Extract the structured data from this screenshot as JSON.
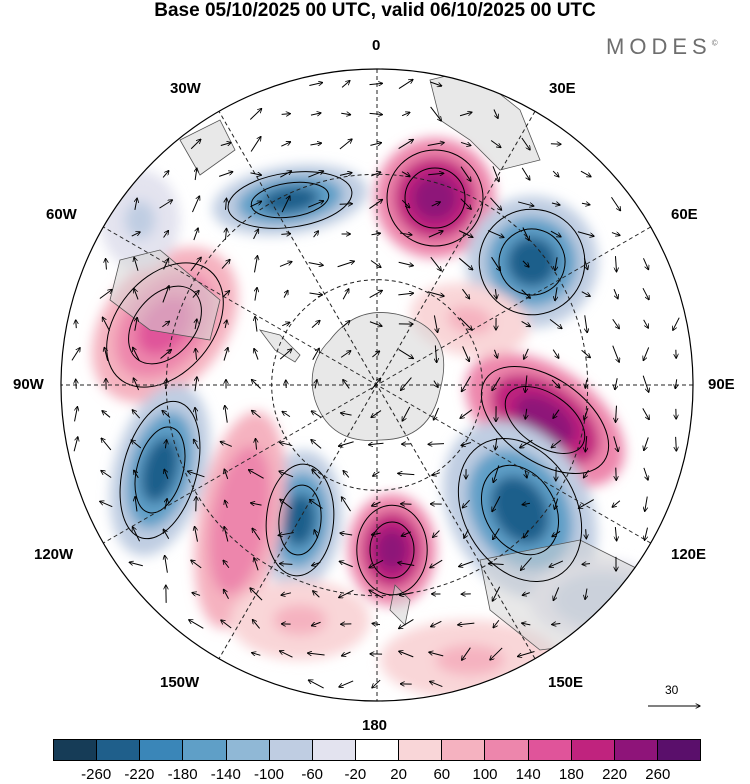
{
  "title": "Base 05/10/2025 00 UTC, valid 06/10/2025 00 UTC",
  "brand": {
    "name": "MODES",
    "mark": "©"
  },
  "longitudes": {
    "top": "0",
    "bottom": "180",
    "left": "90W",
    "right": "90E",
    "w30": "30W",
    "e30": "30E",
    "w60": "60W",
    "e60": "60E",
    "w120": "120W",
    "e120": "120E",
    "w150": "150W",
    "e150": "150E"
  },
  "reference_vector": {
    "label": "30",
    "icon": "arrow-right-icon"
  },
  "colorbar": {
    "colors": [
      "#163c57",
      "#1f5f8b",
      "#3a86b8",
      "#5f9fc7",
      "#90b8d6",
      "#bfcde2",
      "#e3e3ef",
      "#ffffff",
      "#f9d6d8",
      "#f5b2c0",
      "#ed86ac",
      "#e0549a",
      "#c0237e",
      "#8e1479",
      "#5a0f6b"
    ],
    "labels": [
      "-260",
      "-220",
      "-180",
      "-140",
      "-100",
      "-60",
      "-20",
      "20",
      "60",
      "100",
      "140",
      "180",
      "220",
      "260"
    ]
  },
  "colors": {
    "land": "#d6d6d6",
    "grid": "#222222",
    "coast": "#555555",
    "background": "#ffffff"
  }
}
